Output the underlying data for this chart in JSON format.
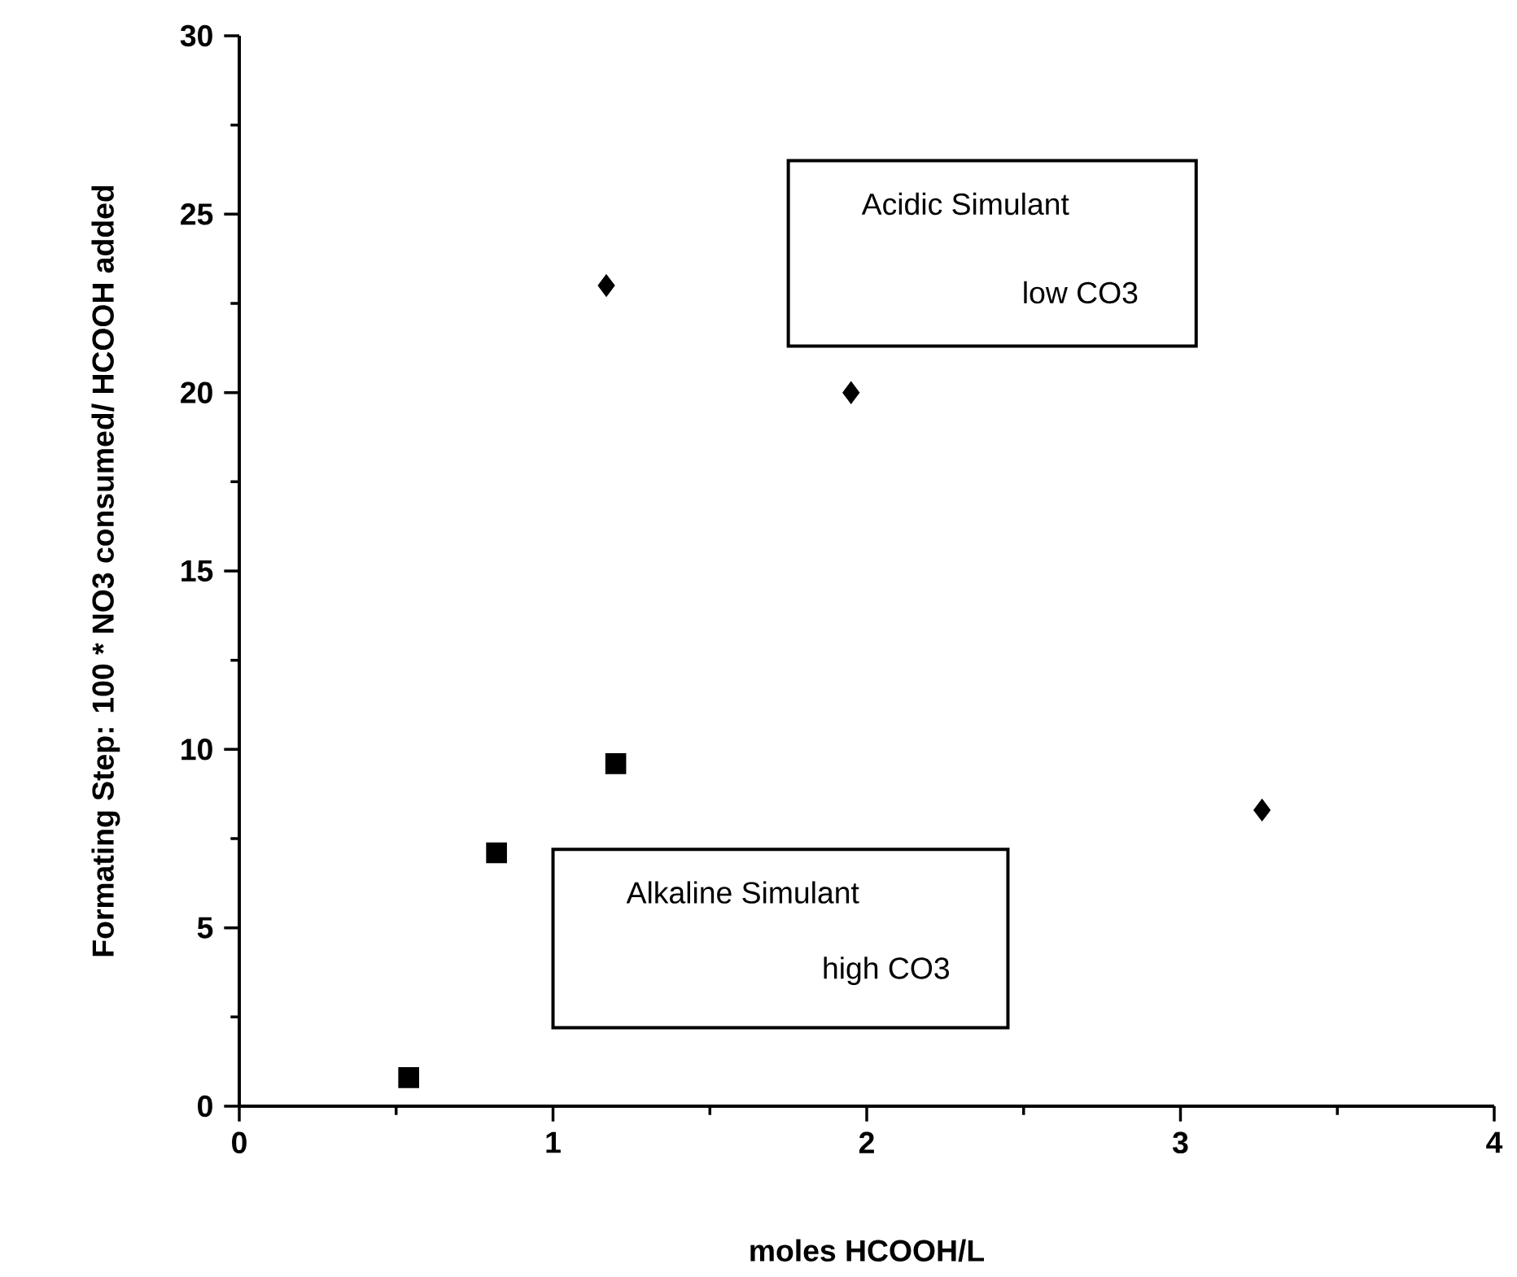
{
  "chart_data": {
    "type": "scatter",
    "xlabel": "moles HCOOH/L",
    "ylabel": "Formating Step:  100 * NO3 consumed/ HCOOH added",
    "series": [
      {
        "color": "#000000",
        "marker": "diamond",
        "x": [
          1.17,
          1.95,
          3.26
        ],
        "values": [
          23.0,
          20.0,
          8.3
        ]
      },
      {
        "color": "#000000",
        "marker": "square",
        "x": [
          0.54,
          0.82,
          1.2
        ],
        "values": [
          0.8,
          7.1,
          9.6
        ]
      }
    ],
    "xlim": [
      0,
      4
    ],
    "ylim": [
      0,
      30
    ],
    "xticks": [
      0,
      1,
      2,
      3,
      4
    ],
    "yticks": [
      0,
      5,
      10,
      15,
      20,
      25,
      30
    ],
    "grid": false,
    "annotations": [
      "Acidic Simulant",
      "low CO3",
      "Alkaline Simulant",
      "high CO3"
    ]
  }
}
